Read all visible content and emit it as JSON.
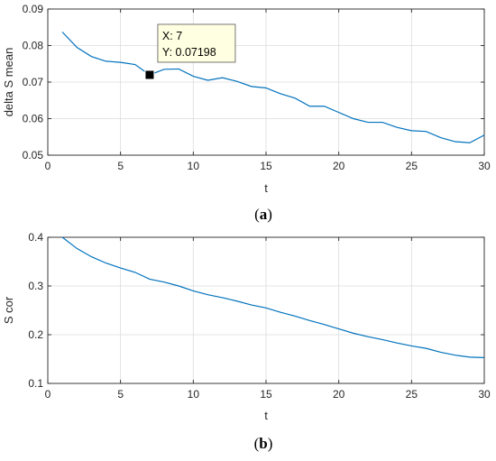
{
  "chart_data": [
    {
      "type": "line",
      "panel_label_pre": "(",
      "panel_label": "a",
      "panel_label_post": ")",
      "xlabel": "t",
      "ylabel": "delta S mean",
      "xlim": [
        0,
        30
      ],
      "ylim": [
        0.05,
        0.09
      ],
      "xticks": [
        0,
        5,
        10,
        15,
        20,
        25,
        30
      ],
      "yticks": [
        0.05,
        0.06,
        0.07,
        0.08,
        0.09
      ],
      "ytick_labels": [
        "0.05",
        "0.06",
        "0.07",
        "0.08",
        "0.09"
      ],
      "grid": true,
      "color": "#0072BD",
      "x": [
        1,
        2,
        3,
        4,
        5,
        6,
        7,
        8,
        9,
        10,
        11,
        12,
        13,
        14,
        15,
        16,
        17,
        18,
        19,
        20,
        21,
        22,
        23,
        24,
        25,
        26,
        27,
        28,
        29,
        30
      ],
      "y": [
        0.0837,
        0.0795,
        0.077,
        0.0757,
        0.0754,
        0.0748,
        0.07198,
        0.0735,
        0.0736,
        0.0716,
        0.0705,
        0.0712,
        0.0702,
        0.0688,
        0.0684,
        0.0668,
        0.0656,
        0.0634,
        0.0634,
        0.0617,
        0.06,
        0.059,
        0.059,
        0.0576,
        0.0567,
        0.0565,
        0.0548,
        0.0537,
        0.0534,
        0.0555
      ],
      "datatip": {
        "x": 7,
        "y": 0.07198,
        "x_text": "X: 7",
        "y_text": "Y: 0.07198"
      }
    },
    {
      "type": "line",
      "panel_label_pre": "(",
      "panel_label": "b",
      "panel_label_post": ")",
      "xlabel": "t",
      "ylabel": "S cor",
      "xlim": [
        0,
        30
      ],
      "ylim": [
        0.1,
        0.4
      ],
      "xticks": [
        0,
        5,
        10,
        15,
        20,
        25,
        30
      ],
      "yticks": [
        0.1,
        0.2,
        0.3,
        0.4
      ],
      "ytick_labels": [
        "0.1",
        "0.2",
        "0.3",
        "0.4"
      ],
      "grid": true,
      "color": "#0072BD",
      "x": [
        1,
        2,
        3,
        4,
        5,
        6,
        7,
        8,
        9,
        10,
        11,
        12,
        13,
        14,
        15,
        16,
        17,
        18,
        19,
        20,
        21,
        22,
        23,
        24,
        25,
        26,
        27,
        28,
        29,
        30
      ],
      "y": [
        0.4,
        0.377,
        0.36,
        0.347,
        0.337,
        0.328,
        0.314,
        0.308,
        0.3,
        0.29,
        0.282,
        0.276,
        0.269,
        0.261,
        0.255,
        0.246,
        0.238,
        0.229,
        0.221,
        0.212,
        0.203,
        0.196,
        0.19,
        0.183,
        0.177,
        0.172,
        0.164,
        0.158,
        0.154,
        0.153
      ]
    }
  ]
}
